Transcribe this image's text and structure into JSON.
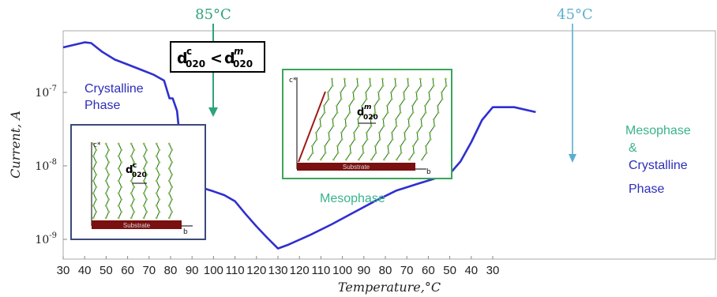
{
  "chart_data": {
    "type": "line",
    "title": "",
    "xlabel": "Temperature,°C",
    "ylabel": "Current, A",
    "x_ticks": [
      "30",
      "40",
      "50",
      "60",
      "70",
      "80",
      "90",
      "100",
      "110",
      "120",
      "130",
      "120",
      "110",
      "100",
      "90",
      "80",
      "70",
      "60",
      "50",
      "40",
      "30"
    ],
    "y_ticks": [
      "10-9",
      "10-8",
      "10-7"
    ],
    "y_scale": "log",
    "ylim": [
      6e-10,
      1.2e-06
    ],
    "series": [
      {
        "x_index": [
          0,
          1.0,
          1.3,
          1.8,
          2.4,
          3.0,
          3.6,
          4.2,
          4.7,
          4.95,
          5.1,
          5.3,
          5.45,
          5.55,
          5.7,
          6.0,
          6.5,
          7.0,
          7.5,
          8.0,
          8.5,
          9.0,
          9.5,
          10.0,
          10.5,
          11.5,
          12.5,
          13.5,
          14.5,
          15.5,
          16.5,
          17.5,
          18.0,
          18.5,
          19.0,
          19.5,
          20.0,
          21.0,
          22.0
        ],
        "values": [
          4.1e-07,
          4.8e-07,
          4.7e-07,
          3.6e-07,
          2.8e-07,
          2.4e-07,
          2.05e-07,
          1.75e-07,
          1.45e-07,
          8.3e-08,
          8.3e-08,
          5.6e-08,
          2.1e-08,
          4.3e-09,
          5.4e-09,
          5.5e-09,
          5e-09,
          4.5e-09,
          4e-09,
          3.3e-09,
          2.2e-09,
          1.5e-09,
          1.05e-09,
          7.5e-10,
          8.5e-10,
          1.15e-09,
          1.6e-09,
          2.3e-09,
          3.3e-09,
          4.6e-09,
          5.7e-09,
          7e-09,
          7.8e-09,
          1.15e-08,
          2.1e-08,
          4.2e-08,
          6.3e-08,
          6.3e-08,
          5.4e-08
        ]
      }
    ],
    "legend": "none"
  },
  "annotations": {
    "t85": "85°C",
    "t45": "45°C",
    "crystalline_1": "Crystalline",
    "crystalline_2": "Phase",
    "mesophase": "Mesophase",
    "mix_1": "Mesophase",
    "mix_2": "&",
    "mix_3": "Crystalline",
    "mix_4": "Phase",
    "dbox_d": "d",
    "dbox_sub_c": "020",
    "dbox_sup_c": "c",
    "dbox_lt": "<",
    "dbox_d2": "d",
    "dbox_sub_m": "020",
    "dbox_sup_m": "m"
  },
  "insets": {
    "left": {
      "substrate": "Substrate",
      "c_axis": "c*",
      "b_axis": "b",
      "d": "d",
      "d_sub": "020",
      "d_sup": "c"
    },
    "right": {
      "substrate": "Substrate",
      "c_axis": "c*",
      "b_axis": "b",
      "d": "d",
      "d_sub": "020",
      "d_sup": "m"
    }
  },
  "colors": {
    "curve": "#2f2fd0",
    "arrow85": "#2fa37a",
    "arrow45": "#5aaecf",
    "crystal_text": "#2d2db8",
    "meso_text": "#39b48a",
    "inset_left_border": "#3a4a7a",
    "inset_right_border": "#3aa65a",
    "substrate": "#7a1010",
    "chain_dots": "#8bc34a",
    "chain_line": "#1a6b1a"
  }
}
